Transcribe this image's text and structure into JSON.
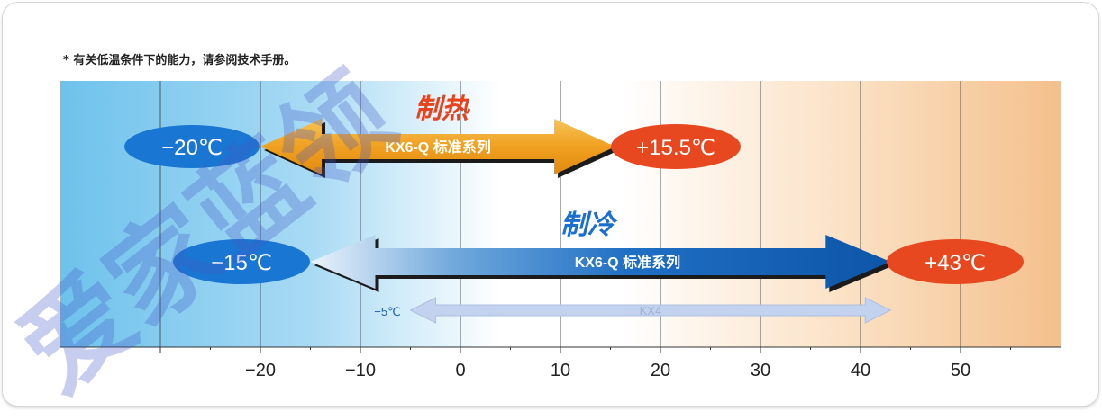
{
  "note": "* 有关低温条件下的能力，请参阅技术手册。",
  "watermark": "爱家蓝领",
  "axis": {
    "min": -40,
    "max": 60,
    "ticks": [
      -20,
      -10,
      0,
      10,
      20,
      30,
      40,
      50
    ],
    "tick_labels": [
      "−20",
      "−10",
      "0",
      "10",
      "20",
      "30",
      "40",
      "50"
    ]
  },
  "heating": {
    "title": "制热",
    "series_label": "KX6-Q 标准系列",
    "min": -20,
    "max": 15.5,
    "min_label": "−20℃",
    "max_label": "+15.5℃",
    "color": "#f0a020",
    "title_color": "#e8421c"
  },
  "cooling": {
    "title": "制冷",
    "series_label": "KX6-Q 标准系列",
    "min": -15,
    "max": 43,
    "min_label": "−15℃",
    "max_label": "+43℃",
    "color": "#1565c0",
    "title_color": "#1a6fd0"
  },
  "kx4": {
    "label": "KX4",
    "min": -5,
    "max": 43,
    "min_label": "−5℃",
    "color": "#c3d2ee"
  },
  "colors": {
    "cold_oval": "#1976d2",
    "hot_oval": "#e8481f",
    "cold_band": "#6ec2ec",
    "hot_band": "#f4c08c"
  }
}
